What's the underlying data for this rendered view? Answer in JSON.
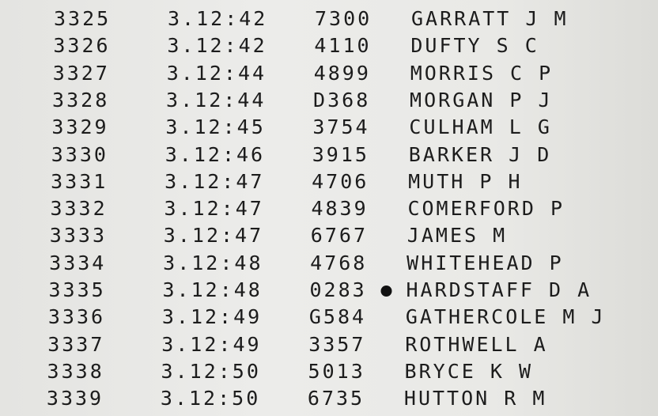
{
  "rows": [
    {
      "position": "3325",
      "time": "3.12:42",
      "number": "7300",
      "name": "GARRATT J M",
      "marked": false
    },
    {
      "position": "3326",
      "time": "3.12:42",
      "number": "4110",
      "name": "DUFTY S C",
      "marked": false
    },
    {
      "position": "3327",
      "time": "3.12:44",
      "number": "4899",
      "name": "MORRIS C P",
      "marked": false
    },
    {
      "position": "3328",
      "time": "3.12:44",
      "number": "D368",
      "name": "MORGAN P J",
      "marked": false
    },
    {
      "position": "3329",
      "time": "3.12:45",
      "number": "3754",
      "name": "CULHAM L G",
      "marked": false
    },
    {
      "position": "3330",
      "time": "3.12:46",
      "number": "3915",
      "name": "BARKER J D",
      "marked": false
    },
    {
      "position": "3331",
      "time": "3.12:47",
      "number": "4706",
      "name": "MUTH P H",
      "marked": false
    },
    {
      "position": "3332",
      "time": "3.12:47",
      "number": "4839",
      "name": "COMERFORD P",
      "marked": false
    },
    {
      "position": "3333",
      "time": "3.12:47",
      "number": "6767",
      "name": "JAMES M",
      "marked": false
    },
    {
      "position": "3334",
      "time": "3.12:48",
      "number": "4768",
      "name": "WHITEHEAD P",
      "marked": false
    },
    {
      "position": "3335",
      "time": "3.12:48",
      "number": "0283",
      "name": "HARDSTAFF D A",
      "marked": true
    },
    {
      "position": "3336",
      "time": "3.12:49",
      "number": "G584",
      "name": "GATHERCOLE M J",
      "marked": false
    },
    {
      "position": "3337",
      "time": "3.12:49",
      "number": "3357",
      "name": "ROTHWELL A",
      "marked": false
    },
    {
      "position": "3338",
      "time": "3.12:50",
      "number": "5013",
      "name": "BRYCE K W",
      "marked": false
    },
    {
      "position": "3339",
      "time": "3.12:50",
      "number": "6735",
      "name": "HUTTON R M",
      "marked": false
    }
  ]
}
